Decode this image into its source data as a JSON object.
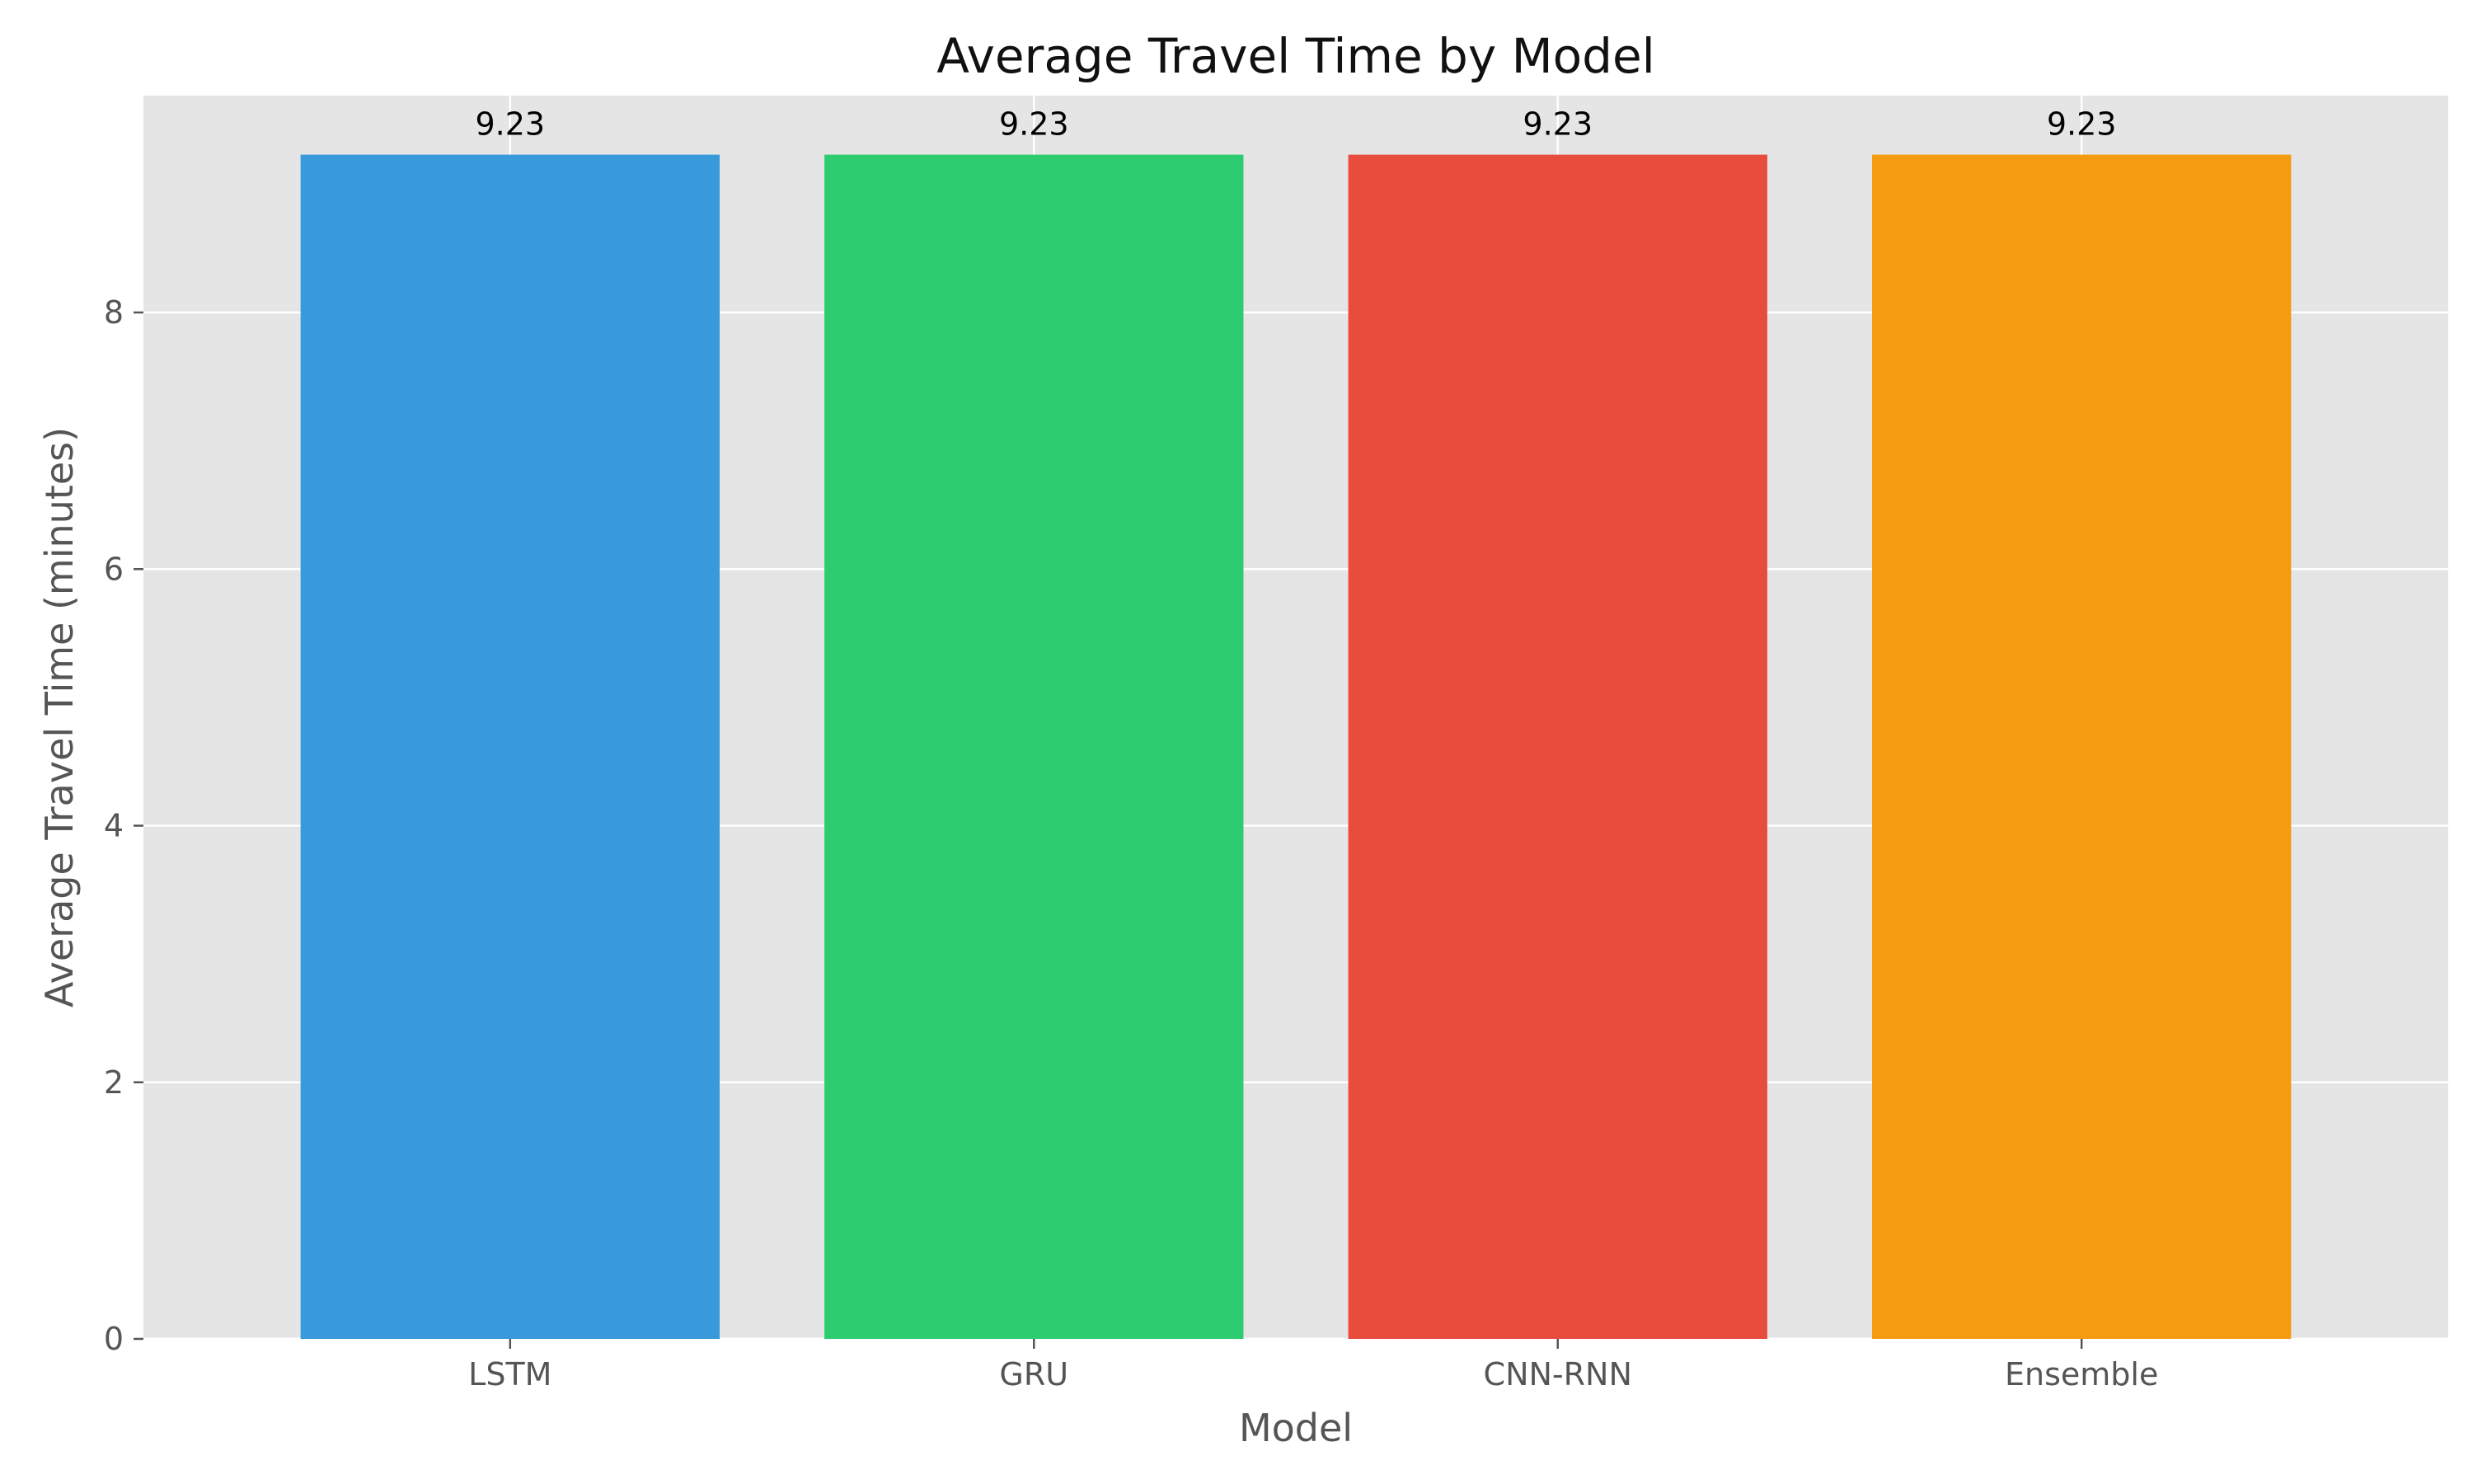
{
  "chart_data": {
    "type": "bar",
    "title": "Average Travel Time by Model",
    "xlabel": "Model",
    "ylabel": "Average Travel Time (minutes)",
    "categories": [
      "LSTM",
      "GRU",
      "CNN-RNN",
      "Ensemble"
    ],
    "values": [
      9.23,
      9.23,
      9.23,
      9.23
    ],
    "data_labels": [
      "9.23",
      "9.23",
      "9.23",
      "9.23"
    ],
    "colors": [
      "#3899db",
      "#2ecc71",
      "#e84c3d",
      "#f39c12"
    ],
    "yticks": [
      0,
      2,
      4,
      6,
      8
    ],
    "ylim": [
      0,
      9.69
    ],
    "grid": true,
    "plot_background": "#e5e5e5"
  }
}
